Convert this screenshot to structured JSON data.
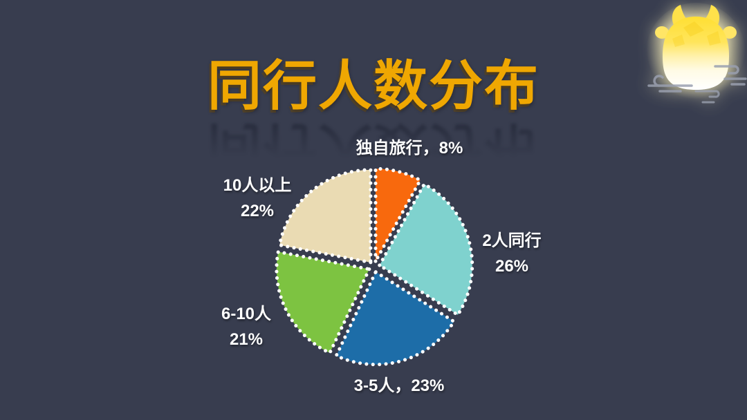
{
  "title": "同行人数分布",
  "colors": {
    "background": "#383D4F",
    "title": "#EFA702",
    "label_text": "#FFFFFF",
    "slice_border_dots": "#FFFFFF"
  },
  "chart_data": {
    "type": "pie",
    "title": "同行人数分布",
    "start_angle_deg": 0,
    "direction": "clockwise",
    "exploded": true,
    "border_style": "white-dotted",
    "legend_position": "none",
    "labels_position": "outside",
    "segments": [
      {
        "label": "独自旅行",
        "value": 8,
        "color": "#F8690D",
        "callout": {
          "line1": "独自旅行，8%"
        }
      },
      {
        "label": "2人同行",
        "value": 26,
        "color": "#7FD2CE",
        "callout": {
          "line1": "2人同行",
          "line2": "26%"
        }
      },
      {
        "label": "3-5人",
        "value": 23,
        "color": "#1D6DA8",
        "callout": {
          "line1": "3-5人，23%"
        }
      },
      {
        "label": "6-10人",
        "value": 21,
        "color": "#7DC341",
        "callout": {
          "line1": "6-10人",
          "line2": "21%"
        }
      },
      {
        "label": "10人以上",
        "value": 22,
        "color": "#EADBB3",
        "callout": {
          "line1": "10人以上",
          "line2": "22%"
        }
      }
    ]
  },
  "decor": {
    "mascot": "glowing-ox-lantern",
    "clouds": "chinese-cloud-swirls"
  }
}
